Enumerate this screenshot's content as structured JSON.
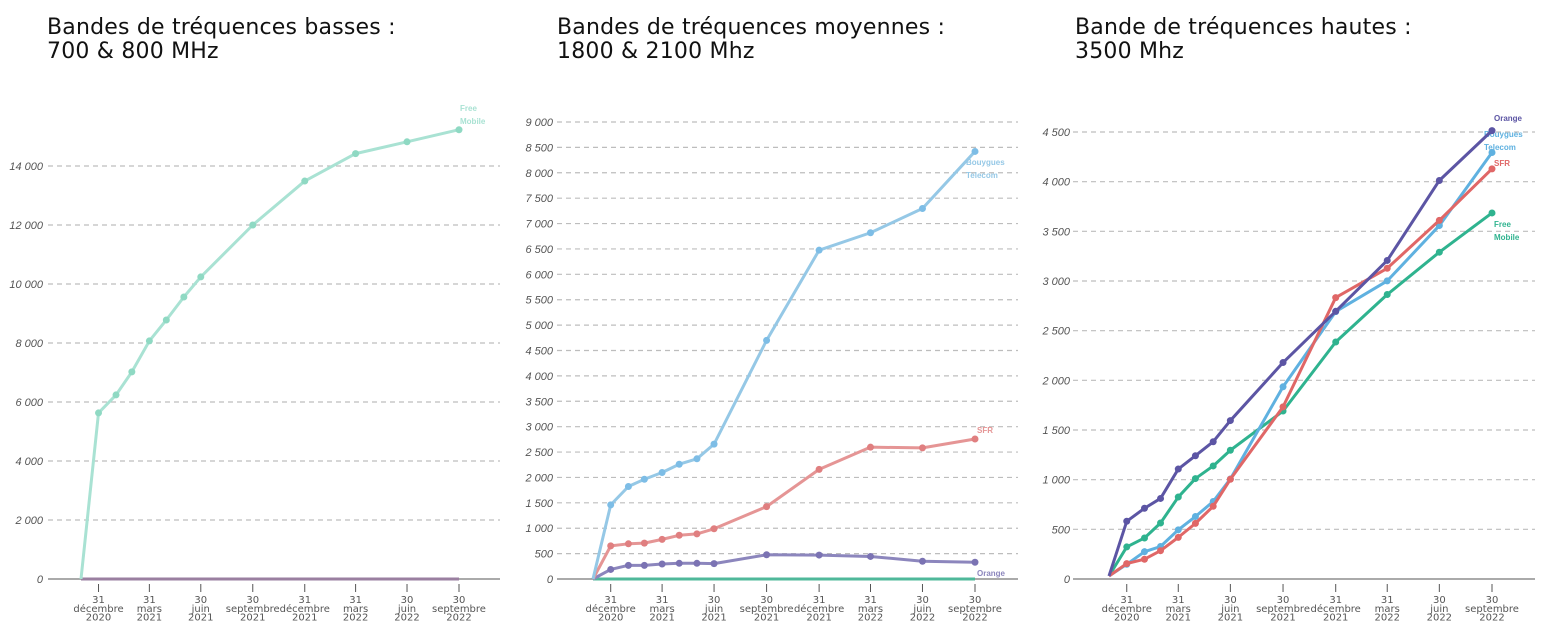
{
  "chart_data": [
    {
      "type": "line",
      "title": [
        "Bandes de tréquences basses :",
        "700 & 800 MHz"
      ],
      "yticks": [
        0,
        2000,
        4000,
        6000,
        8000,
        10000,
        12000,
        14000
      ],
      "ytick_labels": [
        "0",
        "2 000",
        "4 000",
        "6 000",
        "8 000",
        "10 000",
        "12 000",
        "14 000"
      ],
      "ylim": [
        0,
        15500
      ],
      "grid": true,
      "x": [
        "2020-11-30",
        "2020-12-31",
        "2021-01-31",
        "2021-02-28",
        "2021-03-31",
        "2021-04-30",
        "2021-05-31",
        "2021-06-30",
        "2021-09-30",
        "2021-12-31",
        "2022-03-31",
        "2022-06-30",
        "2022-09-30"
      ],
      "series": [
        {
          "name": "",
          "color": "#9a7fa0",
          "markers": false,
          "values": [
            0,
            0,
            0,
            0,
            0,
            0,
            0,
            0,
            0,
            0,
            0,
            0,
            0
          ]
        },
        {
          "name": [
            "Free",
            "Mobile"
          ],
          "color": "#a9e2d3",
          "marker_color": "#8fd9c3",
          "markers": true,
          "values": [
            0,
            5630,
            6240,
            7020,
            8070,
            8780,
            9560,
            10240,
            12000,
            13490,
            14420,
            14820,
            15230
          ]
        }
      ]
    },
    {
      "type": "line",
      "title": [
        "Bandes de tréquences moyennes :",
        "1800 & 2100 Mhz"
      ],
      "yticks": [
        0,
        500,
        1000,
        1500,
        2000,
        2500,
        3000,
        3500,
        4000,
        4500,
        5000,
        5500,
        6000,
        6500,
        7000,
        7500,
        8000,
        8500,
        9000
      ],
      "ytick_labels": [
        "0",
        "500",
        "1 000",
        "1 500",
        "2 000",
        "2 500",
        "3 000",
        "3 500",
        "4 000",
        "4 500",
        "5 000",
        "5 500",
        "6 000",
        "6 500",
        "7 000",
        "7 500",
        "8 000",
        "8 500",
        "9 000"
      ],
      "ylim": [
        0,
        9000
      ],
      "grid": true,
      "x": [
        "2020-11-30",
        "2020-12-31",
        "2021-01-31",
        "2021-02-28",
        "2021-03-31",
        "2021-04-30",
        "2021-05-31",
        "2021-06-30",
        "2021-09-30",
        "2021-12-31",
        "2022-03-31",
        "2022-06-30",
        "2022-09-30"
      ],
      "series": [
        {
          "name": "",
          "color": "#4fb89a",
          "markers": false,
          "values": [
            0,
            0,
            0,
            0,
            0,
            0,
            0,
            0,
            0,
            0,
            0,
            0,
            0
          ]
        },
        {
          "name": [
            "Orange"
          ],
          "color": "#8c86bd",
          "marker_color": "#7b73b3",
          "markers": true,
          "values": [
            0,
            188,
            269,
            269,
            296,
            309,
            309,
            303,
            477,
            471,
            444,
            350,
            330
          ]
        },
        {
          "name": [
            "SFR"
          ],
          "color": "#e59595",
          "marker_color": "#e07f80",
          "markers": true,
          "values": [
            0,
            652,
            693,
            706,
            780,
            861,
            888,
            989,
            1426,
            2159,
            2596,
            2582,
            2757
          ]
        },
        {
          "name": [
            "Bouygues",
            "Telecom"
          ],
          "color": "#95c8e6",
          "marker_color": "#7dbde6",
          "markers": true,
          "values": [
            0,
            1460,
            1822,
            1964,
            2098,
            2260,
            2367,
            2656,
            4700,
            6476,
            6819,
            7297,
            8420
          ]
        }
      ]
    },
    {
      "type": "line",
      "title": [
        "Bande de tréquences hautes :",
        "3500 Mhz"
      ],
      "yticks": [
        0,
        500,
        1000,
        1500,
        2000,
        2500,
        3000,
        3500,
        4000,
        4500
      ],
      "ytick_labels": [
        "0",
        "500",
        "1 000",
        "1 500",
        "2 000",
        "2 500",
        "3 000",
        "3 500",
        "4 000",
        "4 500"
      ],
      "ylim": [
        0,
        4500
      ],
      "grid": true,
      "x": [
        "2020-11-30",
        "2020-12-31",
        "2021-01-31",
        "2021-02-28",
        "2021-03-31",
        "2021-04-30",
        "2021-05-31",
        "2021-06-30",
        "2021-09-30",
        "2021-12-31",
        "2022-03-31",
        "2022-06-30",
        "2022-09-30"
      ],
      "series": [
        {
          "name": [
            "Free",
            "Mobile"
          ],
          "color": "#2fb38f",
          "marker_color": "#2fb38f",
          "markers": true,
          "values": [
            30,
            323,
            413,
            564,
            825,
            1011,
            1138,
            1296,
            1691,
            2386,
            2864,
            3290,
            3685
          ]
        },
        {
          "name": [
            "Bouygues",
            "Telecom"
          ],
          "color": "#5fb1e0",
          "marker_color": "#5fb1e0",
          "markers": true,
          "values": [
            30,
            148,
            275,
            327,
            495,
            629,
            780,
            1007,
            1935,
            2692,
            3001,
            3558,
            4294
          ]
        },
        {
          "name": [
            "SFR"
          ],
          "color": "#e06767",
          "marker_color": "#e06767",
          "markers": true,
          "values": [
            30,
            155,
            199,
            285,
            419,
            560,
            732,
            1004,
            1733,
            2833,
            3128,
            3610,
            4129
          ]
        },
        {
          "name": [
            "Orange"
          ],
          "color": "#5c55a4",
          "marker_color": "#5c55a4",
          "markers": true,
          "values": [
            30,
            581,
            712,
            811,
            1107,
            1241,
            1382,
            1595,
            2179,
            2695,
            3207,
            4012,
            4514
          ]
        }
      ]
    }
  ],
  "xtick_dates": [
    "2020-12-31",
    "2021-03-31",
    "2021-06-30",
    "2021-09-30",
    "2021-12-31",
    "2022-03-31",
    "2022-06-30",
    "2022-09-30"
  ],
  "xtick_labels": [
    [
      "31",
      "décembre",
      "2020"
    ],
    [
      "31",
      "mars",
      "2021"
    ],
    [
      "30",
      "juin",
      "2021"
    ],
    [
      "30",
      "septembre",
      "2021"
    ],
    [
      "31",
      "décembre",
      "2021"
    ],
    [
      "31",
      "mars",
      "2022"
    ],
    [
      "30",
      "juin",
      "2022"
    ],
    [
      "30",
      "septembre",
      "2022"
    ]
  ]
}
